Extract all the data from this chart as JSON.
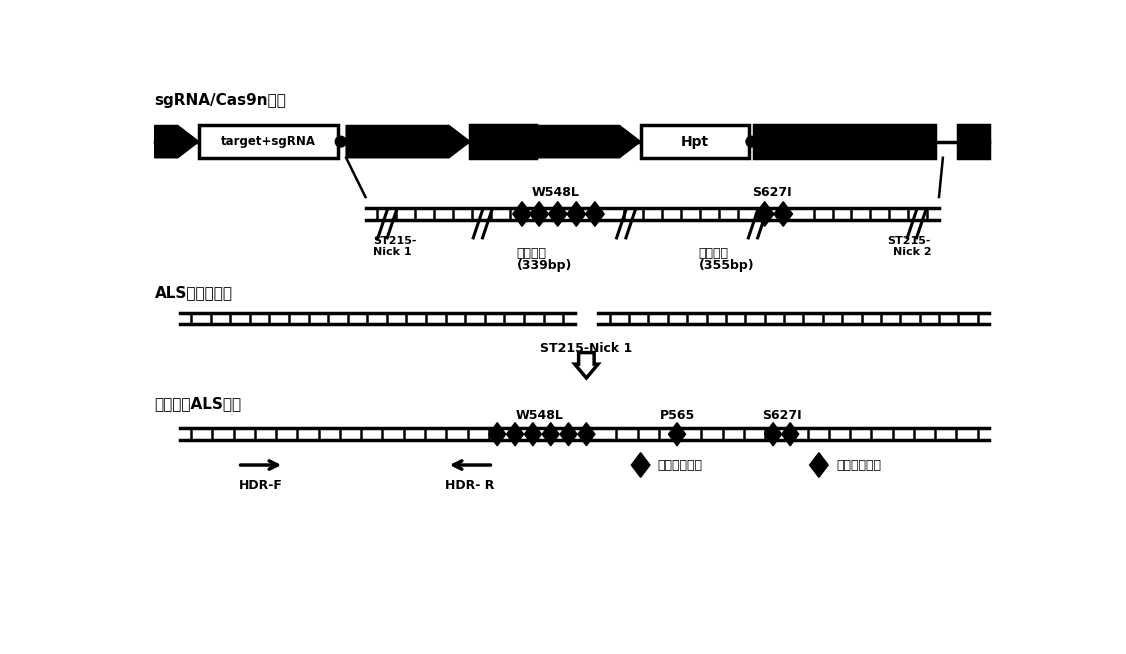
{
  "title": "sgRNA/Cas9n载体",
  "als_gene_label": "ALS基因组序列",
  "replaced_als_label": "替换后的ALS序列",
  "w548l_label": "W548L",
  "s627i_label": "S627I",
  "p565_label": "P565",
  "st215_nick1_line1": "ST215-",
  "st215_nick1_line2": "Nick 1",
  "st215_nick2_line1": "ST215-",
  "st215_nick2_line2": "Nick 2",
  "left_arm_line1": "左同源贡",
  "left_arm_line2": "(339bp)",
  "right_arm_line1": "右同源贡",
  "right_arm_line2": "(355bp)",
  "hdr_f_label": "HDR-F",
  "hdr_r_label": "HDR- R",
  "snick_label": "ST215-Nick 1",
  "fwd_mut_label": "反义突变位点",
  "sil_mut_label": "沉默突变位点",
  "target_sgrna": "target+sgRNA",
  "hpt": "Hpt",
  "background": "#ffffff",
  "black": "#000000"
}
